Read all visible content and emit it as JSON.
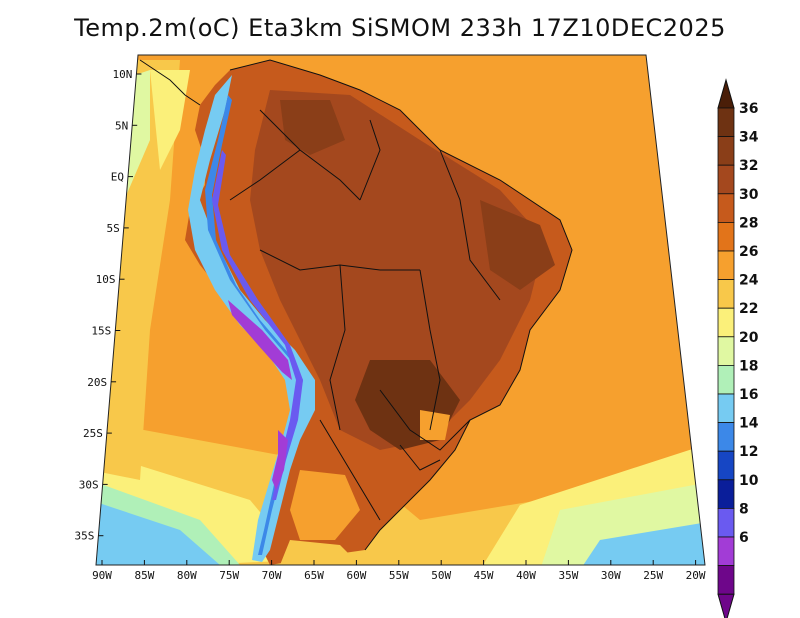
{
  "title": "Temp.2m(oC) Eta3km SiSMOM 233h 17Z10DEC2025",
  "lat_ticks": [
    "10N",
    "5N",
    "EQ",
    "5S",
    "10S",
    "15S",
    "20S",
    "25S",
    "30S",
    "35S"
  ],
  "lon_ticks": [
    "90W",
    "85W",
    "80W",
    "75W",
    "70W",
    "65W",
    "60W",
    "55W",
    "50W",
    "45W",
    "40W",
    "35W",
    "30W",
    "25W",
    "20W"
  ],
  "colorbar": {
    "labels": [
      "36",
      "34",
      "32",
      "30",
      "28",
      "26",
      "24",
      "22",
      "20",
      "18",
      "16",
      "14",
      "12",
      "10",
      "8",
      "6"
    ],
    "colors": [
      "#6e3212",
      "#8a3e18",
      "#a4481e",
      "#c65a1c",
      "#e2741a",
      "#f6a02e",
      "#f8c84a",
      "#fbf07a",
      "#e0f8a2",
      "#b0f0b8",
      "#76cbf2",
      "#3c88e8",
      "#1646c4",
      "#0a1e9a",
      "#6a5af0",
      "#a23cd6",
      "#6e068a"
    ],
    "top_color": "#4a1e08",
    "bottom_color": "#6e068a"
  }
}
